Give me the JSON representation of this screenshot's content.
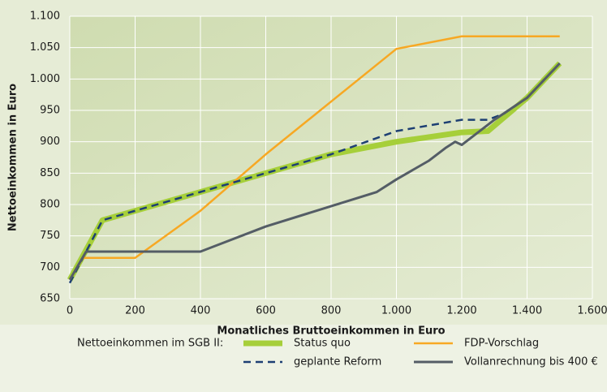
{
  "chart_data": {
    "type": "line",
    "xlabel": "Monatliches Bruttoeinkommen in Euro",
    "ylabel": "Nettoeinkommen in Euro",
    "legend_title": "Nettoeinkommen im SGB II:",
    "xlim": [
      0,
      1600
    ],
    "xticks": [
      0,
      200,
      400,
      600,
      800,
      {
        "value": 1000,
        "label": "1.000"
      },
      {
        "value": 1200,
        "label": "1.200"
      },
      {
        "value": 1400,
        "label": "1.400"
      },
      {
        "value": 1600,
        "label": "1.600"
      }
    ],
    "ylim": [
      650,
      1100
    ],
    "yticks": [
      650,
      700,
      750,
      800,
      850,
      900,
      950,
      {
        "value": 1000,
        "label": "1.000"
      },
      {
        "value": 1050,
        "label": "1.050"
      },
      {
        "value": 1100,
        "label": "1.100"
      }
    ],
    "grid": true,
    "series": [
      {
        "name": "Status quo",
        "color": "#a6cf3a",
        "width": 7,
        "dash": false,
        "x": [
          0,
          100,
          800,
          1000,
          1200,
          1280,
          1400,
          1500
        ],
        "values": [
          680,
          775,
          880,
          900,
          915,
          917,
          970,
          1025
        ]
      },
      {
        "name": "FDP-Vorschlag",
        "color": "#f7a823",
        "width": 2.5,
        "dash": false,
        "x": [
          0,
          40,
          200,
          400,
          600,
          1000,
          1200,
          1500
        ],
        "values": [
          680,
          715,
          715,
          790,
          880,
          1048,
          1068,
          1068
        ]
      },
      {
        "name": "geplante Reform",
        "color": "#1d3f73",
        "width": 2.5,
        "dash": true,
        "x": [
          0,
          100,
          800,
          1000,
          1200,
          1280,
          1330,
          1400,
          1500
        ],
        "values": [
          675,
          775,
          880,
          917,
          935,
          935,
          945,
          970,
          1025
        ]
      },
      {
        "name": "Vollanrechnung bis 400 €",
        "color": "#545d66",
        "width": 3,
        "dash": false,
        "x": [
          0,
          50,
          400,
          600,
          940,
          1000,
          1100,
          1150,
          1180,
          1200,
          1300,
          1400,
          1500
        ],
        "values": [
          680,
          725,
          725,
          765,
          820,
          840,
          870,
          890,
          900,
          895,
          935,
          970,
          1025
        ]
      }
    ]
  }
}
